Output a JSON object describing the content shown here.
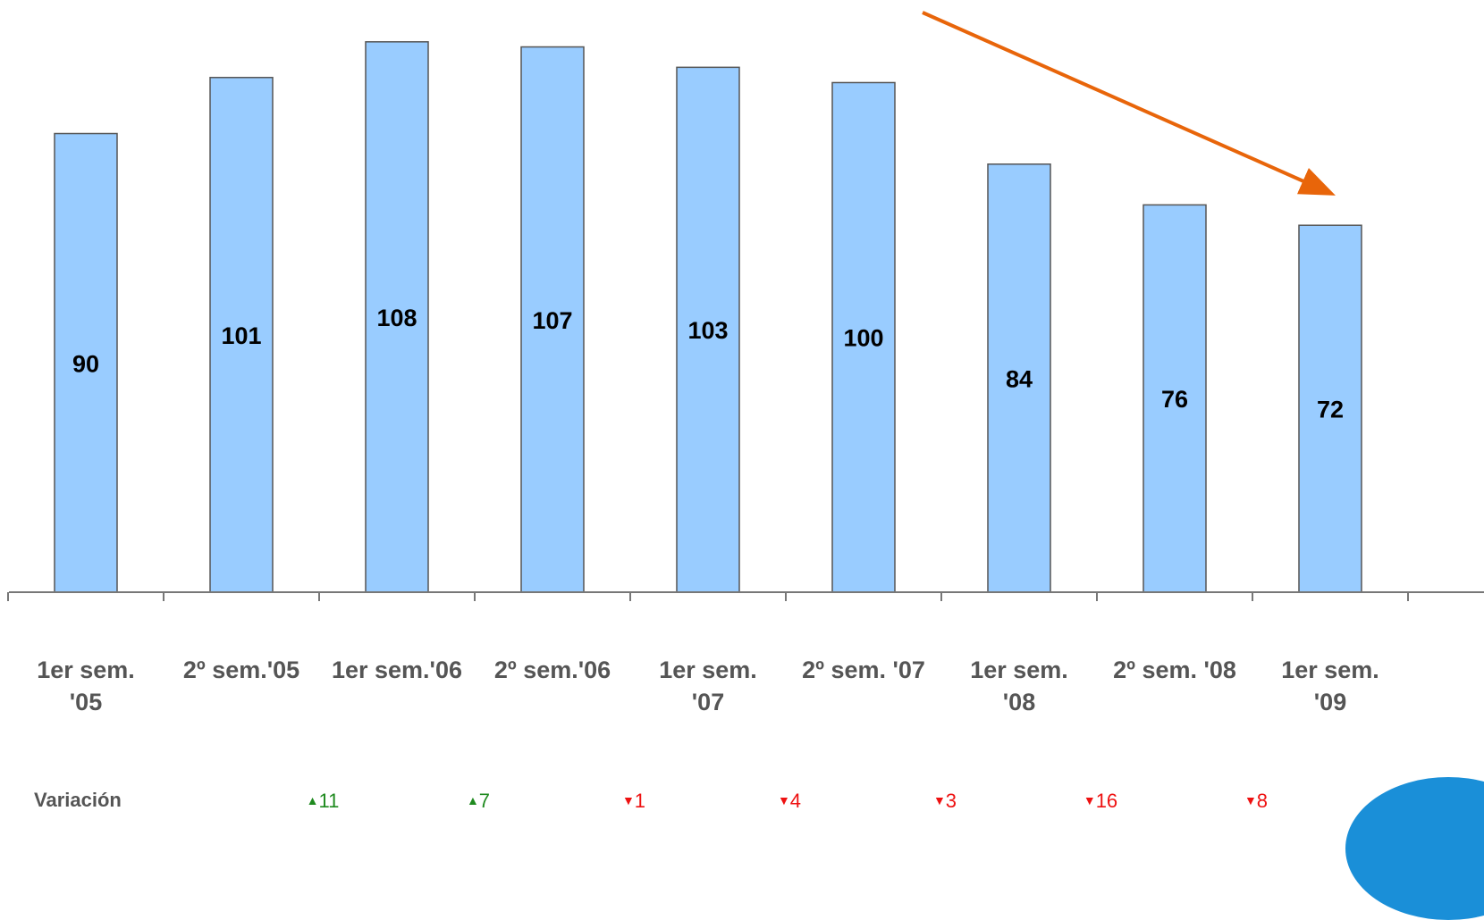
{
  "chart_data": {
    "type": "bar",
    "categories": [
      "1er sem.\n'05",
      "2º sem.'05",
      "1er sem.'06",
      "2º sem.'06",
      "1er sem.\n'07",
      "2º sem. '07",
      "1er sem.\n'08",
      "2º sem. '08",
      "1er sem.\n'09"
    ],
    "values": [
      90,
      101,
      108,
      107,
      103,
      100,
      84,
      76,
      72
    ],
    "title": "",
    "xlabel": "",
    "ylabel": "",
    "ylim": [
      0,
      112
    ],
    "grid": false,
    "legend": "none",
    "bar_color": "#99ccff",
    "bar_edge_color": "#555555",
    "trend_arrow_color": "#e8650a",
    "trend_arrow": {
      "from": 1.5,
      "to": 8.5
    }
  },
  "variation": {
    "label": "Variación",
    "items": [
      {
        "direction": "up",
        "value": "11",
        "color": "#1f8a1f"
      },
      {
        "direction": "up",
        "value": "7",
        "color": "#1f8a1f"
      },
      {
        "direction": "down",
        "value": "1",
        "color": "#ee1111"
      },
      {
        "direction": "down",
        "value": "4",
        "color": "#ee1111"
      },
      {
        "direction": "down",
        "value": "3",
        "color": "#ee1111"
      },
      {
        "direction": "down",
        "value": "16",
        "color": "#ee1111"
      },
      {
        "direction": "down",
        "value": "8",
        "color": "#ee1111"
      }
    ]
  },
  "decoration": {
    "corner_color": "#1a8fd8"
  }
}
